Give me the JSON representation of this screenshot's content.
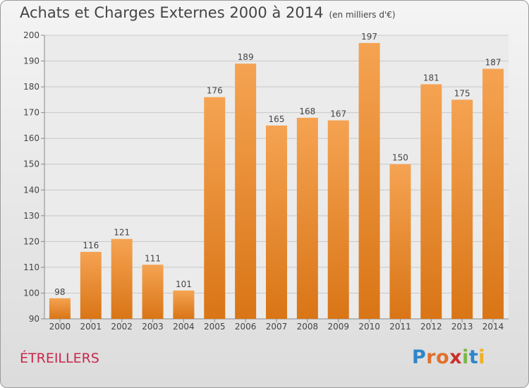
{
  "header": {
    "title": "Achats et Charges Externes 2000 à 2014",
    "unit": "(en milliers d'€)"
  },
  "footer": {
    "town": "ÉTREILLERS",
    "logo": [
      "P",
      "r",
      "o",
      "x",
      "i",
      "t",
      "i"
    ]
  },
  "colors": {
    "bar_top": "#f5a352",
    "bar_bottom": "#d97516",
    "title": "#444444",
    "town": "#c8284a"
  },
  "chart_data": {
    "type": "bar",
    "title": "Achats et Charges Externes 2000 à 2014",
    "subtitle": "(en milliers d'€)",
    "categories": [
      "2000",
      "2001",
      "2002",
      "2003",
      "2004",
      "2005",
      "2006",
      "2007",
      "2008",
      "2009",
      "2010",
      "2011",
      "2012",
      "2013",
      "2014"
    ],
    "values": [
      98,
      116,
      121,
      111,
      101,
      176,
      189,
      165,
      168,
      167,
      197,
      150,
      181,
      175,
      187
    ],
    "ylim": [
      90,
      200
    ],
    "yticks": [
      90,
      100,
      110,
      120,
      130,
      140,
      150,
      160,
      170,
      180,
      190,
      200
    ],
    "grid": true,
    "legend": "none"
  }
}
